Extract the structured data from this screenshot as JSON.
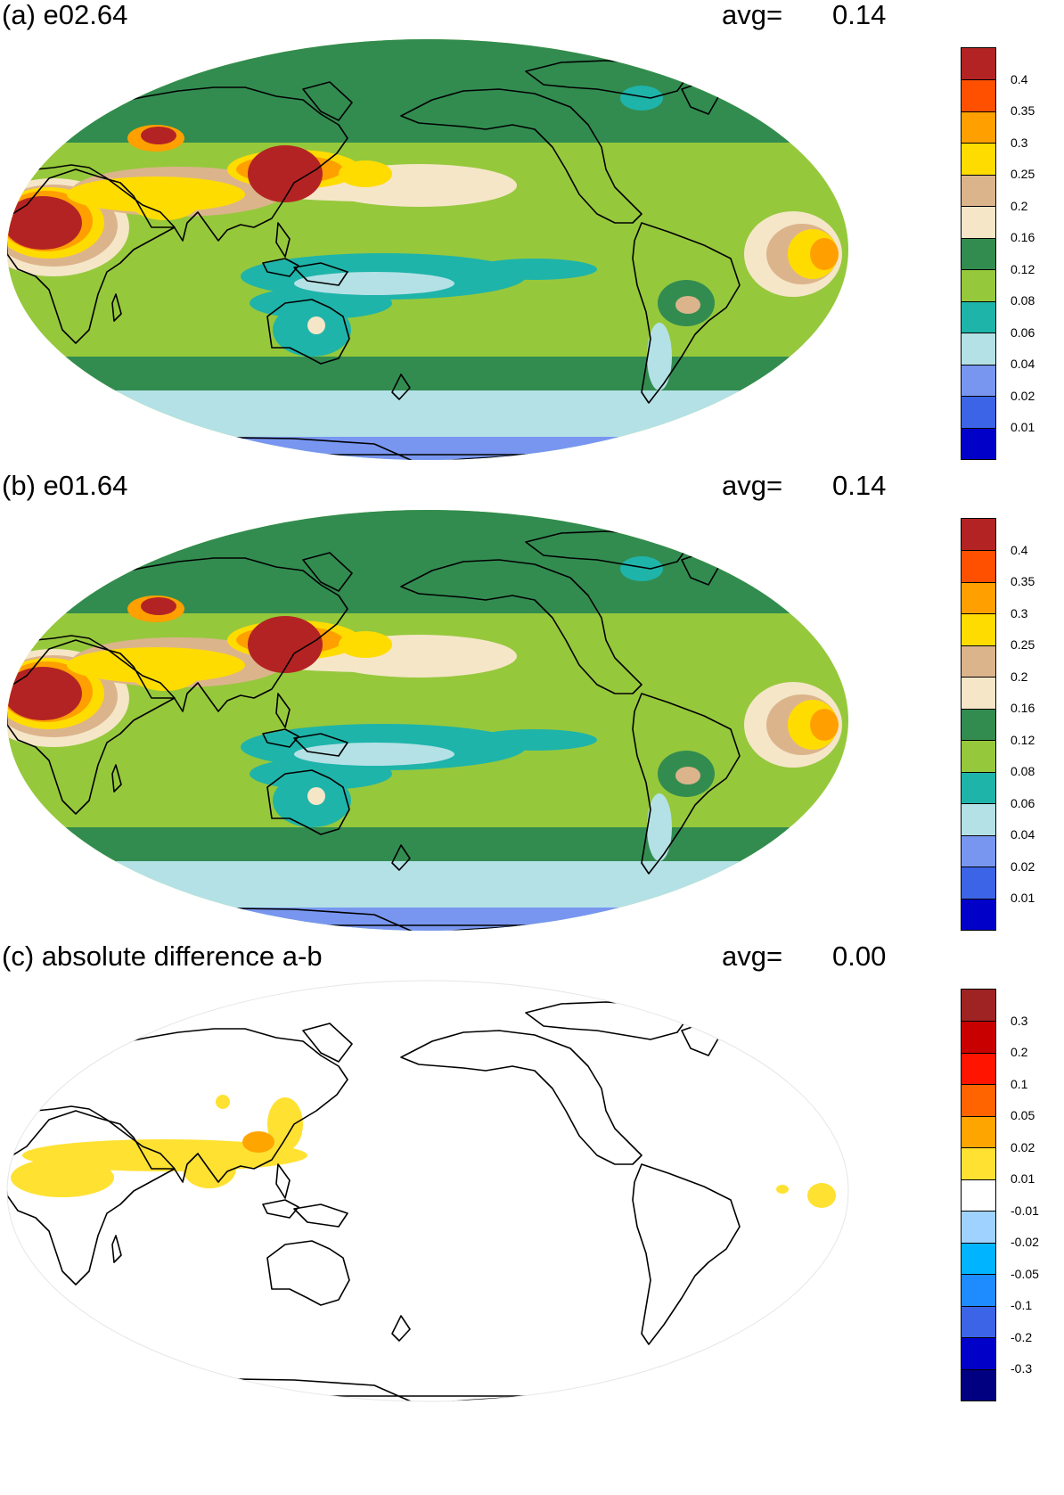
{
  "panels": [
    {
      "id": "a",
      "title": "(a) e02.64",
      "avg_label": "avg=",
      "avg_value": "0.14",
      "colorbar": {
        "colors": [
          "#0000c8",
          "#3c64e6",
          "#7896f0",
          "#b4e1e6",
          "#1eb4aa",
          "#96c83c",
          "#328c50",
          "#f5e6c8",
          "#dcb48c",
          "#ffdc00",
          "#ffa000",
          "#ff5000",
          "#b42323"
        ],
        "labels": [
          "0.01",
          "0.02",
          "0.04",
          "0.06",
          "0.08",
          "0.12",
          "0.16",
          "0.2",
          "0.25",
          "0.3",
          "0.35",
          "0.4"
        ]
      },
      "field": "full"
    },
    {
      "id": "b",
      "title": "(b) e01.64",
      "avg_label": "avg=",
      "avg_value": "0.14",
      "colorbar": {
        "colors": [
          "#0000c8",
          "#3c64e6",
          "#7896f0",
          "#b4e1e6",
          "#1eb4aa",
          "#96c83c",
          "#328c50",
          "#f5e6c8",
          "#dcb48c",
          "#ffdc00",
          "#ffa000",
          "#ff5000",
          "#b42323"
        ],
        "labels": [
          "0.01",
          "0.02",
          "0.04",
          "0.06",
          "0.08",
          "0.12",
          "0.16",
          "0.2",
          "0.25",
          "0.3",
          "0.35",
          "0.4"
        ]
      },
      "field": "full"
    },
    {
      "id": "c",
      "title": "(c) absolute difference a-b",
      "avg_label": "avg=",
      "avg_value": "0.00",
      "colorbar": {
        "colors": [
          "#000080",
          "#0000c8",
          "#3c64e6",
          "#1e8cff",
          "#00b4ff",
          "#a0d2ff",
          "#ffffff",
          "#ffe132",
          "#ffa500",
          "#ff6400",
          "#ff1400",
          "#c80000",
          "#a02323"
        ],
        "labels": [
          "-0.3",
          "-0.2",
          "-0.1",
          "-0.05",
          "-0.02",
          "-0.01",
          "0.01",
          "0.02",
          "0.05",
          "0.1",
          "0.2",
          "0.3"
        ]
      },
      "field": "difference"
    }
  ]
}
